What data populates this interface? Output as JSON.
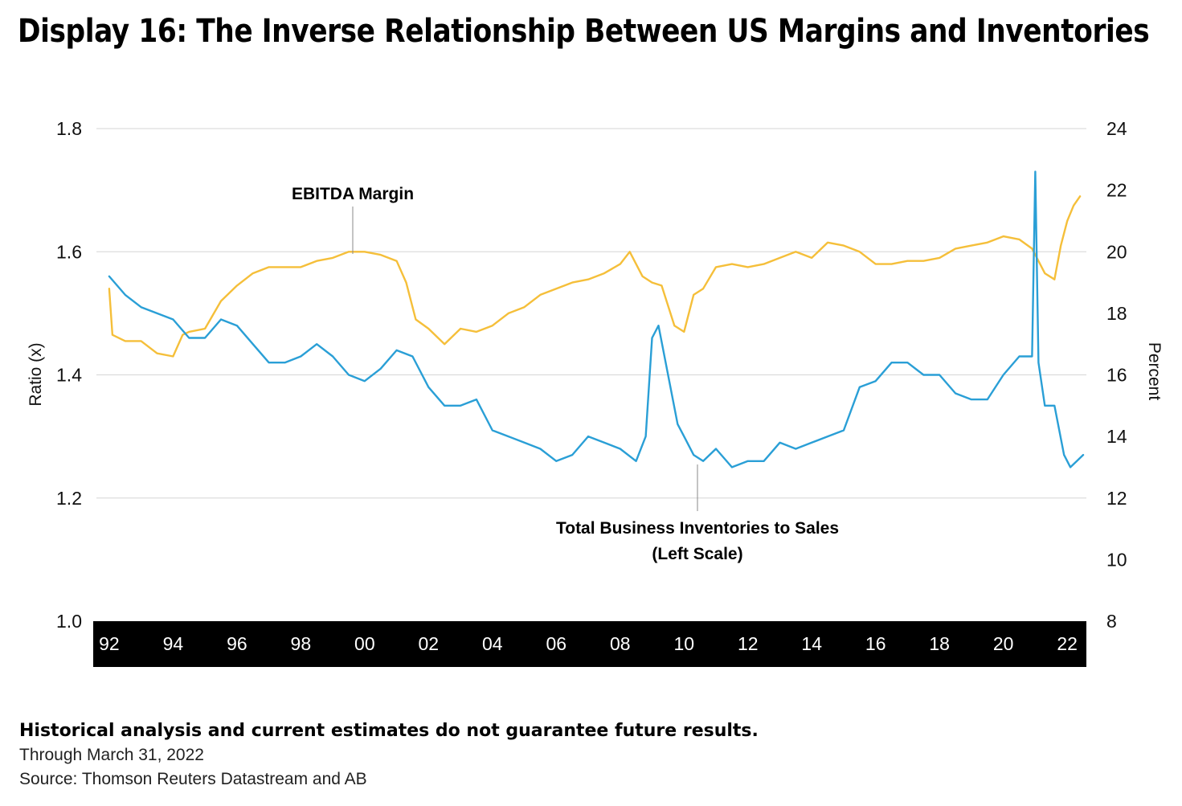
{
  "title": "Display 16: The Inverse Relationship Between US Margins and Inventories",
  "footer": {
    "disclaimer": "Historical analysis and current estimates do not guarantee future results.",
    "through": "Through March 31, 2022",
    "source": "Source: Thomson Reuters Datastream and AB"
  },
  "colors": {
    "inventories": "#2a9fd6",
    "ebitda": "#f5bf3a",
    "axis_band": "#000000",
    "grid": "#d6d6d6"
  },
  "chart_data": {
    "type": "line",
    "xlabel": "",
    "x_ticks": [
      "92",
      "94",
      "96",
      "98",
      "00",
      "02",
      "04",
      "06",
      "08",
      "10",
      "12",
      "14",
      "16",
      "18",
      "20",
      "22"
    ],
    "xlim": [
      1991.6,
      2022.6
    ],
    "left_axis": {
      "label": "Ratio (x)",
      "ticks": [
        "1.0",
        "1.2",
        "1.4",
        "1.6",
        "1.8"
      ],
      "ylim": [
        1.0,
        1.8
      ]
    },
    "right_axis": {
      "label": "Percent",
      "ticks": [
        "8",
        "10",
        "12",
        "14",
        "16",
        "18",
        "20",
        "22",
        "24"
      ],
      "ylim": [
        8,
        24
      ]
    },
    "grid": true,
    "annotations": {
      "ebitda": "EBITDA Margin",
      "inventories_line1": "Total Business Inventories to Sales",
      "inventories_line2": "(Left Scale)"
    },
    "series": [
      {
        "name": "Total Business Inventories to Sales",
        "axis": "left",
        "x": [
          1992.0,
          1992.5,
          1993.0,
          1993.5,
          1994.0,
          1994.5,
          1995.0,
          1995.5,
          1996.0,
          1996.5,
          1997.0,
          1997.5,
          1998.0,
          1998.5,
          1999.0,
          1999.5,
          2000.0,
          2000.5,
          2001.0,
          2001.5,
          2002.0,
          2002.5,
          2003.0,
          2003.5,
          2004.0,
          2004.5,
          2005.0,
          2005.5,
          2006.0,
          2006.5,
          2007.0,
          2007.5,
          2008.0,
          2008.5,
          2008.8,
          2009.0,
          2009.2,
          2009.5,
          2009.8,
          2010.0,
          2010.3,
          2010.6,
          2011.0,
          2011.5,
          2012.0,
          2012.5,
          2013.0,
          2013.5,
          2014.0,
          2014.5,
          2015.0,
          2015.5,
          2016.0,
          2016.5,
          2017.0,
          2017.5,
          2018.0,
          2018.5,
          2019.0,
          2019.5,
          2020.0,
          2020.5,
          2020.9,
          2021.0,
          2021.1,
          2021.3,
          2021.6,
          2021.9,
          2022.1,
          2022.3,
          2022.5
        ],
        "y": [
          1.56,
          1.53,
          1.51,
          1.5,
          1.49,
          1.46,
          1.46,
          1.49,
          1.48,
          1.45,
          1.42,
          1.42,
          1.43,
          1.45,
          1.43,
          1.4,
          1.39,
          1.41,
          1.44,
          1.43,
          1.38,
          1.35,
          1.35,
          1.36,
          1.31,
          1.3,
          1.29,
          1.28,
          1.26,
          1.27,
          1.3,
          1.29,
          1.28,
          1.26,
          1.3,
          1.46,
          1.48,
          1.4,
          1.32,
          1.3,
          1.27,
          1.26,
          1.28,
          1.25,
          1.26,
          1.26,
          1.29,
          1.28,
          1.29,
          1.3,
          1.31,
          1.38,
          1.39,
          1.42,
          1.42,
          1.4,
          1.4,
          1.37,
          1.36,
          1.36,
          1.4,
          1.43,
          1.43,
          1.73,
          1.42,
          1.35,
          1.35,
          1.27,
          1.25,
          1.26,
          1.27
        ]
      },
      {
        "name": "EBITDA Margin",
        "axis": "right",
        "x": [
          1992.0,
          1992.1,
          1992.5,
          1993.0,
          1993.5,
          1994.0,
          1994.3,
          1994.5,
          1995.0,
          1995.5,
          1996.0,
          1996.5,
          1997.0,
          1997.5,
          1998.0,
          1998.5,
          1999.0,
          1999.5,
          2000.0,
          2000.5,
          2001.0,
          2001.3,
          2001.6,
          2002.0,
          2002.5,
          2003.0,
          2003.5,
          2004.0,
          2004.5,
          2005.0,
          2005.5,
          2006.0,
          2006.5,
          2007.0,
          2007.5,
          2008.0,
          2008.3,
          2008.7,
          2009.0,
          2009.3,
          2009.7,
          2010.0,
          2010.3,
          2010.6,
          2011.0,
          2011.5,
          2012.0,
          2012.5,
          2013.0,
          2013.5,
          2014.0,
          2014.5,
          2015.0,
          2015.5,
          2016.0,
          2016.5,
          2017.0,
          2017.5,
          2018.0,
          2018.5,
          2019.0,
          2019.5,
          2020.0,
          2020.5,
          2020.9,
          2021.0,
          2021.3,
          2021.6,
          2021.8,
          2022.0,
          2022.2,
          2022.4
        ],
        "y": [
          18.8,
          17.3,
          17.1,
          17.1,
          16.7,
          16.6,
          17.3,
          17.4,
          17.5,
          18.4,
          18.9,
          19.3,
          19.5,
          19.5,
          19.5,
          19.7,
          19.8,
          20.0,
          20.0,
          19.9,
          19.7,
          19.0,
          17.8,
          17.5,
          17.0,
          17.5,
          17.4,
          17.6,
          18.0,
          18.2,
          18.6,
          18.8,
          19.0,
          19.1,
          19.3,
          19.6,
          20.0,
          19.2,
          19.0,
          18.9,
          17.6,
          17.4,
          18.6,
          18.8,
          19.5,
          19.6,
          19.5,
          19.6,
          19.8,
          20.0,
          19.8,
          20.3,
          20.2,
          20.0,
          19.6,
          19.6,
          19.7,
          19.7,
          19.8,
          20.1,
          20.2,
          20.3,
          20.5,
          20.4,
          20.1,
          19.9,
          19.3,
          19.1,
          20.2,
          21.0,
          21.5,
          21.8
        ]
      }
    ]
  }
}
